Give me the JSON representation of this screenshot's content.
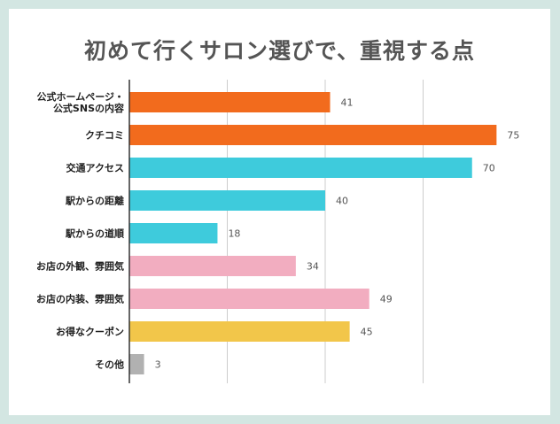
{
  "chart_data": {
    "type": "bar",
    "orientation": "horizontal",
    "title": "初めて行くサロン選びで、重視する点",
    "categories": [
      [
        "公式ホームページ・",
        "公式SNSの内容"
      ],
      [
        "クチコミ"
      ],
      [
        "交通アクセス"
      ],
      [
        "駅からの距離"
      ],
      [
        "駅からの道順"
      ],
      [
        "お店の外観、雰囲気"
      ],
      [
        "お店の内装、雰囲気"
      ],
      [
        "お得なクーポン"
      ],
      [
        "その他"
      ]
    ],
    "values": [
      41,
      75,
      70,
      40,
      18,
      34,
      49,
      45,
      3
    ],
    "bar_colors": [
      "#f26b1d",
      "#f26b1d",
      "#3ecbdc",
      "#3ecbdc",
      "#3ecbdc",
      "#f2adc0",
      "#f2adc0",
      "#f2c64a",
      "#b1b1b1"
    ],
    "xlim": [
      0,
      80
    ],
    "grid": true,
    "colors": {
      "background": "#d3e6e2",
      "panel": "#ffffff",
      "gridline": "#cccccc",
      "axis": "#333333",
      "title_text": "#555555"
    }
  }
}
